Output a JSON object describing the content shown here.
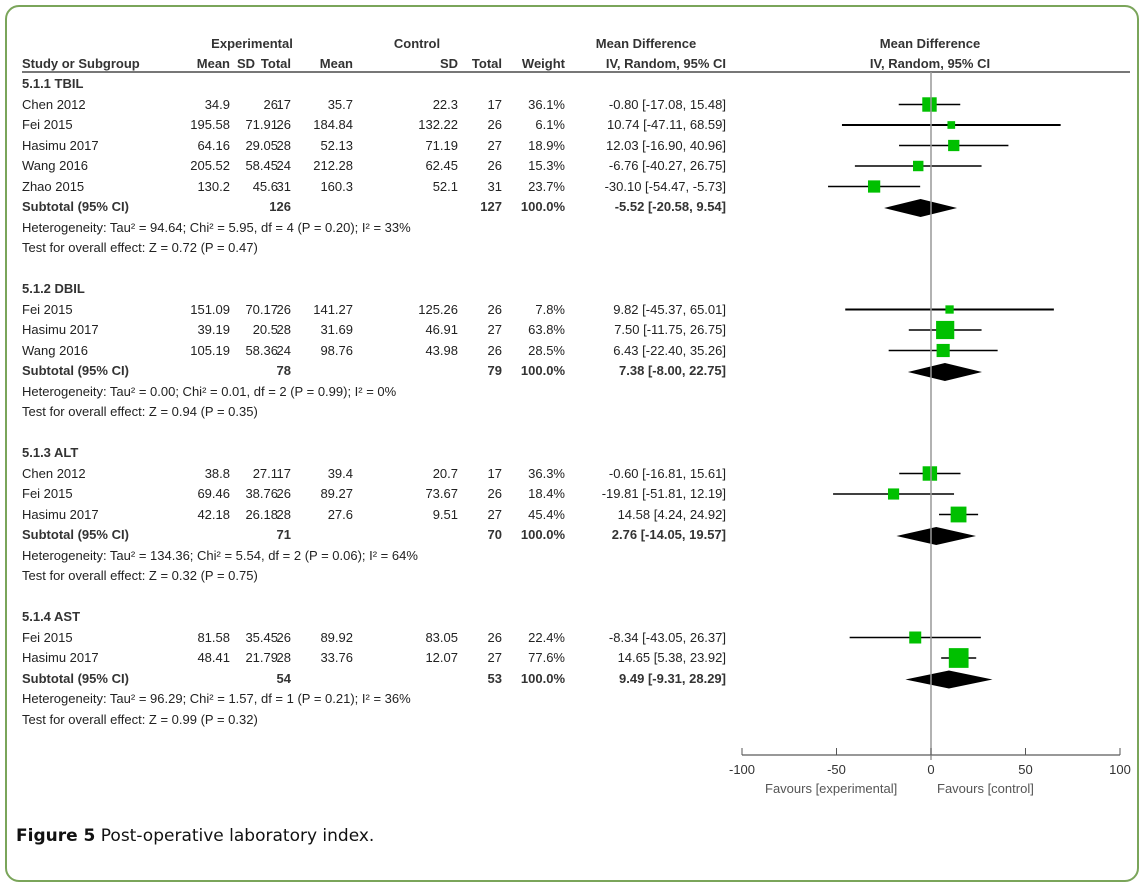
{
  "header": {
    "group_experimental": "Experimental",
    "group_control": "Control",
    "col_study": "Study or Subgroup",
    "col_mean": "Mean",
    "col_sd": "SD",
    "col_total": "Total",
    "col_weight": "Weight",
    "md_title": "Mean Difference",
    "md_method": "IV, Random, 95% CI",
    "plot_title": "Mean Difference",
    "plot_method": "IV, Random, 95% CI"
  },
  "caption": {
    "label": "Figure 5",
    "text": " Post-operative laboratory index."
  },
  "chart_data": {
    "type": "forest",
    "title": "Mean Difference IV, Random, 95% CI",
    "xlim": [
      -100,
      100
    ],
    "xticks": [
      -100,
      -50,
      0,
      50,
      100
    ],
    "xtick_labels": [
      "-100",
      "-50",
      "0",
      "50",
      "100"
    ],
    "favours_left": "Favours [experimental]",
    "favours_right": "Favours [control]",
    "subgroups": [
      {
        "name": "5.1.1 TBIL",
        "studies": [
          {
            "study": "Chen 2012",
            "e_mean": "34.9",
            "e_sd": "26",
            "e_total": "17",
            "c_mean": "35.7",
            "c_sd": "22.3",
            "c_total": "17",
            "weight": "36.1%",
            "md_text": "-0.80 [-17.08, 15.48]",
            "md": -0.8,
            "lo": -17.08,
            "hi": 15.48,
            "w": 36.1
          },
          {
            "study": "Fei 2015",
            "e_mean": "195.58",
            "e_sd": "71.91",
            "e_total": "26",
            "c_mean": "184.84",
            "c_sd": "132.22",
            "c_total": "26",
            "weight": "6.1%",
            "md_text": "10.74 [-47.11, 68.59]",
            "md": 10.74,
            "lo": -47.11,
            "hi": 68.59,
            "w": 6.1
          },
          {
            "study": "Hasimu 2017",
            "e_mean": "64.16",
            "e_sd": "29.05",
            "e_total": "28",
            "c_mean": "52.13",
            "c_sd": "71.19",
            "c_total": "27",
            "weight": "18.9%",
            "md_text": "12.03 [-16.90, 40.96]",
            "md": 12.03,
            "lo": -16.9,
            "hi": 40.96,
            "w": 18.9
          },
          {
            "study": "Wang 2016",
            "e_mean": "205.52",
            "e_sd": "58.45",
            "e_total": "24",
            "c_mean": "212.28",
            "c_sd": "62.45",
            "c_total": "26",
            "weight": "15.3%",
            "md_text": "-6.76 [-40.27, 26.75]",
            "md": -6.76,
            "lo": -40.27,
            "hi": 26.75,
            "w": 15.3
          },
          {
            "study": "Zhao 2015",
            "e_mean": "130.2",
            "e_sd": "45.6",
            "e_total": "31",
            "c_mean": "160.3",
            "c_sd": "52.1",
            "c_total": "31",
            "weight": "23.7%",
            "md_text": "-30.10 [-54.47, -5.73]",
            "md": -30.1,
            "lo": -54.47,
            "hi": -5.73,
            "w": 23.7
          }
        ],
        "subtotal": {
          "label": "Subtotal (95% CI)",
          "e_total": "126",
          "c_total": "127",
          "weight": "100.0%",
          "md_text": "-5.52 [-20.58, 9.54]",
          "md": -5.52,
          "lo": -20.58,
          "hi": 9.54
        },
        "heterogeneity": "Heterogeneity: Tau² = 94.64; Chi² = 5.95, df = 4 (P = 0.20); I² = 33%",
        "overall": "Test for overall effect: Z = 0.72 (P = 0.47)"
      },
      {
        "name": "5.1.2 DBIL",
        "studies": [
          {
            "study": "Fei 2015",
            "e_mean": "151.09",
            "e_sd": "70.17",
            "e_total": "26",
            "c_mean": "141.27",
            "c_sd": "125.26",
            "c_total": "26",
            "weight": "7.8%",
            "md_text": "9.82 [-45.37, 65.01]",
            "md": 9.82,
            "lo": -45.37,
            "hi": 65.01,
            "w": 7.8
          },
          {
            "study": "Hasimu 2017",
            "e_mean": "39.19",
            "e_sd": "20.5",
            "e_total": "28",
            "c_mean": "31.69",
            "c_sd": "46.91",
            "c_total": "27",
            "weight": "63.8%",
            "md_text": "7.50 [-11.75, 26.75]",
            "md": 7.5,
            "lo": -11.75,
            "hi": 26.75,
            "w": 63.8
          },
          {
            "study": "Wang 2016",
            "e_mean": "105.19",
            "e_sd": "58.36",
            "e_total": "24",
            "c_mean": "98.76",
            "c_sd": "43.98",
            "c_total": "26",
            "weight": "28.5%",
            "md_text": "6.43 [-22.40, 35.26]",
            "md": 6.43,
            "lo": -22.4,
            "hi": 35.26,
            "w": 28.5
          }
        ],
        "subtotal": {
          "label": "Subtotal (95% CI)",
          "e_total": "78",
          "c_total": "79",
          "weight": "100.0%",
          "md_text": "7.38 [-8.00, 22.75]",
          "md": 7.38,
          "lo": -8.0,
          "hi": 22.75
        },
        "heterogeneity": "Heterogeneity: Tau² = 0.00; Chi² = 0.01, df = 2 (P = 0.99); I² = 0%",
        "overall": "Test for overall effect: Z = 0.94 (P = 0.35)"
      },
      {
        "name": "5.1.3 ALT",
        "studies": [
          {
            "study": "Chen 2012",
            "e_mean": "38.8",
            "e_sd": "27.1",
            "e_total": "17",
            "c_mean": "39.4",
            "c_sd": "20.7",
            "c_total": "17",
            "weight": "36.3%",
            "md_text": "-0.60 [-16.81, 15.61]",
            "md": -0.6,
            "lo": -16.81,
            "hi": 15.61,
            "w": 36.3
          },
          {
            "study": "Fei 2015",
            "e_mean": "69.46",
            "e_sd": "38.76",
            "e_total": "26",
            "c_mean": "89.27",
            "c_sd": "73.67",
            "c_total": "26",
            "weight": "18.4%",
            "md_text": "-19.81 [-51.81, 12.19]",
            "md": -19.81,
            "lo": -51.81,
            "hi": 12.19,
            "w": 18.4
          },
          {
            "study": "Hasimu 2017",
            "e_mean": "42.18",
            "e_sd": "26.18",
            "e_total": "28",
            "c_mean": "27.6",
            "c_sd": "9.51",
            "c_total": "27",
            "weight": "45.4%",
            "md_text": "14.58 [4.24, 24.92]",
            "md": 14.58,
            "lo": 4.24,
            "hi": 24.92,
            "w": 45.4
          }
        ],
        "subtotal": {
          "label": "Subtotal (95% CI)",
          "e_total": "71",
          "c_total": "70",
          "weight": "100.0%",
          "md_text": "2.76 [-14.05, 19.57]",
          "md": 2.76,
          "lo": -14.05,
          "hi": 19.57
        },
        "heterogeneity": "Heterogeneity: Tau² = 134.36; Chi² = 5.54, df = 2 (P = 0.06); I² = 64%",
        "overall": "Test for overall effect: Z = 0.32 (P = 0.75)"
      },
      {
        "name": "5.1.4 AST",
        "studies": [
          {
            "study": "Fei 2015",
            "e_mean": "81.58",
            "e_sd": "35.45",
            "e_total": "26",
            "c_mean": "89.92",
            "c_sd": "83.05",
            "c_total": "26",
            "weight": "22.4%",
            "md_text": "-8.34 [-43.05, 26.37]",
            "md": -8.34,
            "lo": -43.05,
            "hi": 26.37,
            "w": 22.4
          },
          {
            "study": "Hasimu 2017",
            "e_mean": "48.41",
            "e_sd": "21.79",
            "e_total": "28",
            "c_mean": "33.76",
            "c_sd": "12.07",
            "c_total": "27",
            "weight": "77.6%",
            "md_text": "14.65 [5.38, 23.92]",
            "md": 14.65,
            "lo": 5.38,
            "hi": 23.92,
            "w": 77.6
          }
        ],
        "subtotal": {
          "label": "Subtotal (95% CI)",
          "e_total": "54",
          "c_total": "53",
          "weight": "100.0%",
          "md_text": "9.49 [-9.31, 28.29]",
          "md": 9.49,
          "lo": -9.31,
          "hi": 28.29
        },
        "heterogeneity": "Heterogeneity: Tau² = 96.29; Chi² = 1.57, df = 1 (P = 0.21); I² = 36%",
        "overall": "Test for overall effect: Z = 0.99 (P = 0.32)"
      }
    ],
    "colors": {
      "study_marker": "#00c000",
      "summary_diamond": "#000000",
      "ci_line": "#000000",
      "null_line": "#999999"
    }
  }
}
